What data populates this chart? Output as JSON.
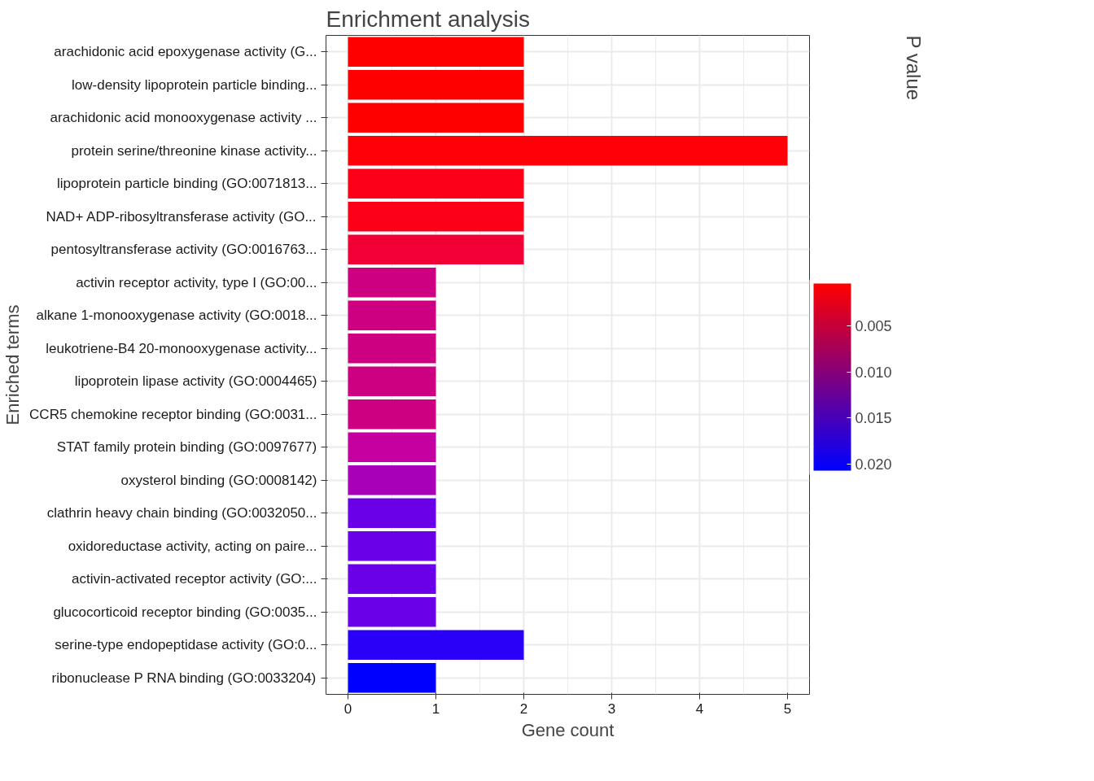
{
  "chart_data": {
    "type": "bar",
    "orientation": "horizontal",
    "title": "Enrichment analysis",
    "xlabel": "Gene count",
    "ylabel": "Enriched terms",
    "clabel": "P value",
    "categories": [
      "arachidonic acid epoxygenase activity (G...",
      "low-density lipoprotein particle binding...",
      "arachidonic acid monooxygenase activity ...",
      "protein serine/threonine kinase activity...",
      "lipoprotein particle binding (GO:0071813...",
      "NAD+ ADP-ribosyltransferase activity (GO...",
      "pentosyltransferase activity (GO:0016763...",
      "activin receptor activity, type I (GO:00...",
      "alkane 1-monooxygenase activity (GO:0018...",
      "leukotriene-B4 20-monooxygenase activity...",
      "lipoprotein lipase activity (GO:0004465)",
      "CCR5 chemokine receptor binding (GO:0031...",
      "STAT family protein binding (GO:0097677)",
      "oxysterol binding (GO:0008142)",
      "clathrin heavy chain binding (GO:0032050...",
      "oxidoreductase activity, acting on paire...",
      "activin-activated receptor activity (GO:...",
      "glucocorticoid receptor binding (GO:0035...",
      "serine-type endopeptidase activity (GO:0...",
      "ribonuclease P RNA binding (GO:0033204)"
    ],
    "values": [
      2,
      2,
      2,
      5,
      2,
      2,
      2,
      1,
      1,
      1,
      1,
      1,
      1,
      1,
      1,
      1,
      1,
      1,
      2,
      1
    ],
    "colors": [
      "#ff0000",
      "#ff0000",
      "#ff0000",
      "#ff0008",
      "#fb0018",
      "#fb0018",
      "#f20035",
      "#cc0080",
      "#cc0080",
      "#cc0080",
      "#cc0080",
      "#cc0080",
      "#c400a0",
      "#a800b8",
      "#6a00e8",
      "#6a00e8",
      "#6a00e8",
      "#6a00e8",
      "#2a00f8",
      "#0000ff"
    ],
    "xlim": [
      -0.25,
      5.25
    ],
    "xticks": [
      0,
      1,
      2,
      3,
      4,
      5
    ],
    "clim": [
      0.0004,
      0.0207
    ],
    "cticks": [
      {
        "value": 0.005,
        "label": "0.005"
      },
      {
        "value": 0.01,
        "label": "0.010"
      },
      {
        "value": 0.015,
        "label": "0.015"
      },
      {
        "value": 0.02,
        "label": "0.020"
      }
    ],
    "grid": true
  }
}
